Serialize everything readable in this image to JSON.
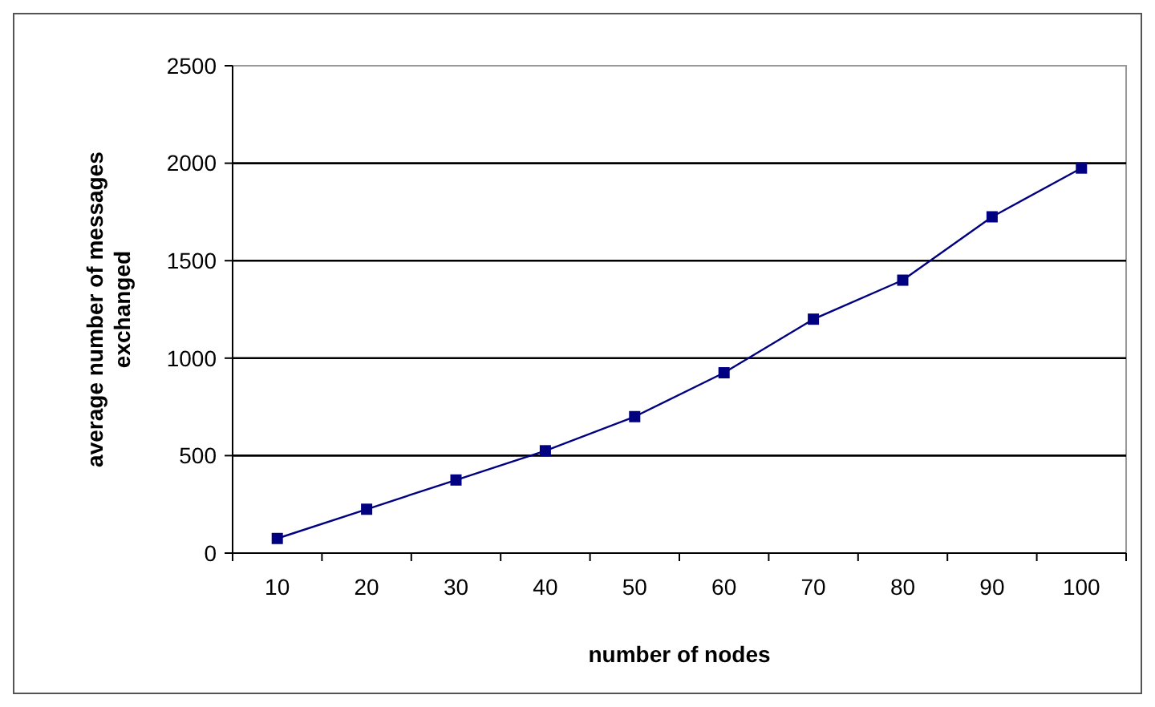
{
  "chart_data": {
    "type": "line",
    "xlabel": "number of nodes",
    "ylabel": "average number of messages exchanged",
    "categories": [
      "10",
      "20",
      "30",
      "40",
      "50",
      "60",
      "70",
      "80",
      "90",
      "100"
    ],
    "series": [
      {
        "color": "#000080",
        "values": [
          75,
          225,
          375,
          525,
          700,
          925,
          1200,
          1400,
          1725,
          1975
        ]
      }
    ],
    "ylim": [
      0,
      2500
    ],
    "yticks": [
      0,
      500,
      1000,
      1500,
      2000,
      2500
    ],
    "grid": "y",
    "marker": "square"
  }
}
